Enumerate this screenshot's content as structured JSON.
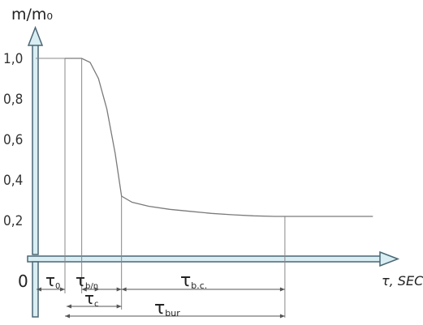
{
  "chart_data": {
    "type": "line",
    "y_axis_label": "m/m₀",
    "x_axis_label": "τ, SEC",
    "origin_label": "0",
    "y_ticks": [
      "1,0",
      "0,8",
      "0,6",
      "0,4",
      "0,2"
    ],
    "y_tick_values": [
      1.0,
      0.8,
      0.6,
      0.4,
      0.2
    ],
    "ylim": [
      0,
      1.2
    ],
    "grid": false,
    "series": [
      {
        "x": [
          0.0,
          0.05,
          0.08,
          0.12,
          0.16,
          0.2,
          0.24,
          0.27,
          0.32,
          0.4,
          0.5,
          0.6,
          0.7,
          0.8,
          0.9,
          1.0,
          1.05,
          1.2,
          1.47
        ],
        "y": [
          1.0,
          1.0,
          1.0,
          0.98,
          0.9,
          0.75,
          0.53,
          0.32,
          0.29,
          0.27,
          0.255,
          0.245,
          0.235,
          0.228,
          0.223,
          0.22,
          0.22,
          0.22,
          0.22
        ]
      }
    ],
    "interval_labels": [
      {
        "sym": "τ",
        "sub": "0"
      },
      {
        "sym": "τ",
        "sub": "b/n"
      },
      {
        "sym": "τ",
        "sub": "c"
      },
      {
        "sym": "τ",
        "sub": "b.c."
      },
      {
        "sym": "τ",
        "sub": "bur"
      }
    ],
    "interval_marks_x": {
      "tau0_start": 0.0,
      "tau0_end": 0.08,
      "bn_end": 0.27,
      "bc_end": 1.05
    }
  }
}
